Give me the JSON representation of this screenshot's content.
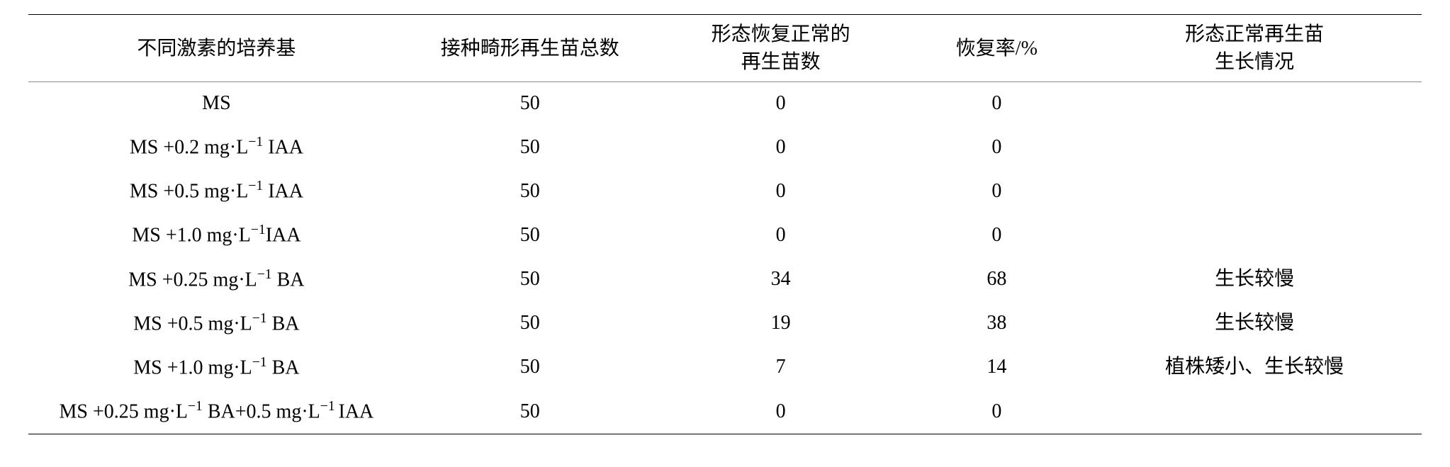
{
  "table": {
    "columns": [
      "不同激素的培养基",
      "接种畸形再生苗总数",
      "形态恢复正常的\n再生苗数",
      "恢复率/%",
      "形态正常再生苗\n生长情况"
    ],
    "rows": [
      {
        "medium_html": "MS",
        "inoc": "50",
        "recov": "0",
        "rate": "0",
        "growth": ""
      },
      {
        "medium_html": "MS +0.2 mg·L<sup>−1</sup> IAA",
        "inoc": "50",
        "recov": "0",
        "rate": "0",
        "growth": ""
      },
      {
        "medium_html": "MS +0.5 mg·L<sup>−1</sup> IAA",
        "inoc": "50",
        "recov": "0",
        "rate": "0",
        "growth": ""
      },
      {
        "medium_html": "MS +1.0 mg·L<sup>−1</sup>IAA",
        "inoc": "50",
        "recov": "0",
        "rate": "0",
        "growth": ""
      },
      {
        "medium_html": "MS +0.25 mg·L<sup>−1</sup> BA",
        "inoc": "50",
        "recov": "34",
        "rate": "68",
        "growth": "生长较慢"
      },
      {
        "medium_html": "MS +0.5 mg·L<sup>−1</sup> BA",
        "inoc": "50",
        "recov": "19",
        "rate": "38",
        "growth": "生长较慢"
      },
      {
        "medium_html": "MS +1.0 mg·L<sup>−1</sup> BA",
        "inoc": "50",
        "recov": "7",
        "rate": "14",
        "growth": "植株矮小、生长较慢"
      },
      {
        "medium_html": "MS +0.25 mg·L<sup>−1</sup> BA+0.5 mg·L<sup>−1 </sup>IAA",
        "inoc": "50",
        "recov": "0",
        "rate": "0",
        "growth": ""
      }
    ],
    "styling": {
      "type": "table",
      "border_top_color": "#000000",
      "header_bottom_border_color": "#888888",
      "border_bottom_color": "#000000",
      "background_color": "#ffffff",
      "text_color": "#000000",
      "header_fontsize_pt": 21,
      "body_fontsize_pt": 21,
      "column_widths_pct": [
        27,
        18,
        18,
        13,
        24
      ],
      "column_align": [
        "center",
        "center",
        "center",
        "center",
        "center"
      ],
      "row_line_height": 1.6
    }
  }
}
